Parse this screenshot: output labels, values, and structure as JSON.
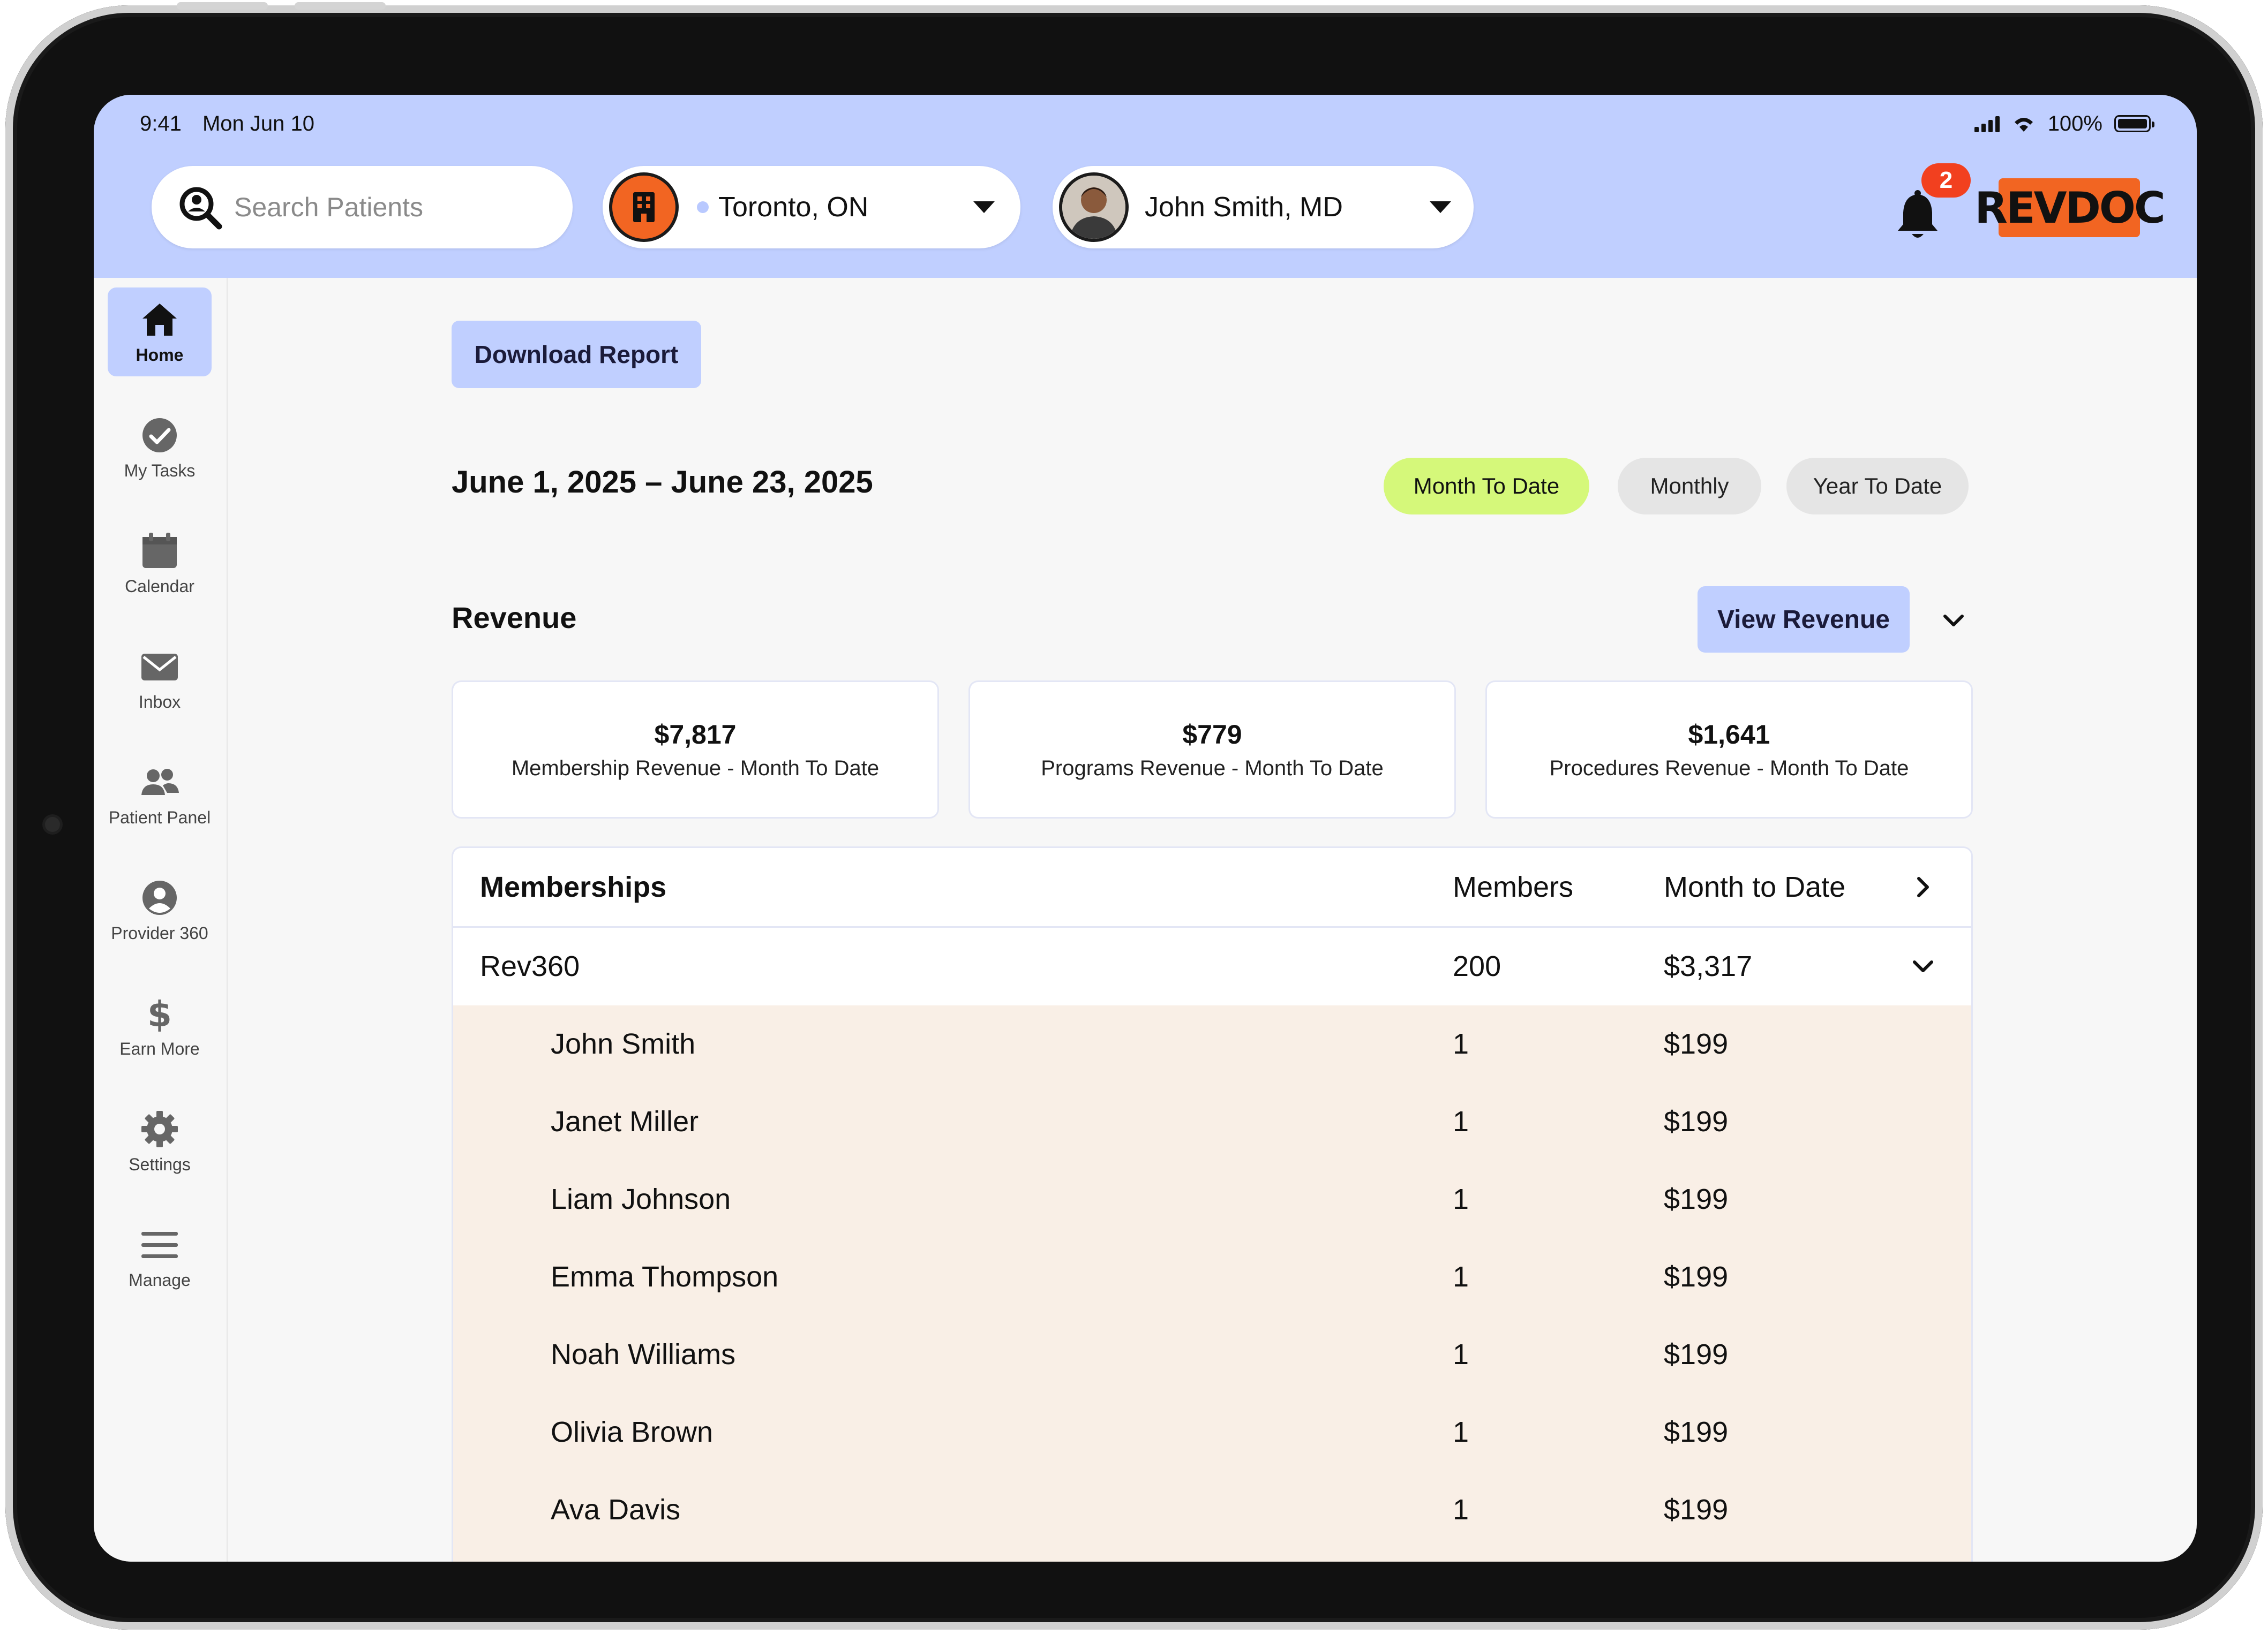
{
  "status_bar": {
    "time": "9:41",
    "date": "Mon Jun 10",
    "battery": "100%"
  },
  "header": {
    "search_placeholder": "Search Patients",
    "location": "Toronto, ON",
    "user_name": "John Smith, MD",
    "notifications_count": "2",
    "logo_text": "REVDOC"
  },
  "sidebar": {
    "items": [
      {
        "label": "Home",
        "icon": "home-icon",
        "active": true
      },
      {
        "label": "My Tasks",
        "icon": "check-circle-icon"
      },
      {
        "label": "Calendar",
        "icon": "calendar-icon"
      },
      {
        "label": "Inbox",
        "icon": "mail-icon"
      },
      {
        "label": "Patient Panel",
        "icon": "users-icon"
      },
      {
        "label": "Provider 360",
        "icon": "user-circle-icon"
      },
      {
        "label": "Earn More",
        "icon": "dollar-icon"
      },
      {
        "label": "Settings",
        "icon": "gear-icon"
      },
      {
        "label": "Manage",
        "icon": "menu-icon"
      }
    ]
  },
  "main": {
    "download_label": "Download Report",
    "date_range": "June 1, 2025 – June 23, 2025",
    "periods": [
      "Month To Date",
      "Monthly",
      "Year To Date"
    ],
    "active_period": "Month To Date",
    "revenue_title": "Revenue",
    "view_revenue_label": "View Revenue",
    "cards": [
      {
        "value": "$7,817",
        "label": "Membership Revenue - Month To Date"
      },
      {
        "value": "$779",
        "label": "Programs Revenue - Month To Date"
      },
      {
        "value": "$1,641",
        "label": "Procedures Revenue - Month To Date"
      }
    ],
    "table": {
      "headers": [
        "Memberships",
        "Members",
        "Month to Date"
      ],
      "group": {
        "name": "Rev360",
        "members": "200",
        "mtd": "$3,317"
      },
      "rows": [
        {
          "name": "John Smith",
          "members": "1",
          "mtd": "$199"
        },
        {
          "name": "Janet Miller",
          "members": "1",
          "mtd": "$199"
        },
        {
          "name": "Liam Johnson",
          "members": "1",
          "mtd": "$199"
        },
        {
          "name": "Emma Thompson",
          "members": "1",
          "mtd": "$199"
        },
        {
          "name": "Noah Williams",
          "members": "1",
          "mtd": "$199"
        },
        {
          "name": "Olivia Brown",
          "members": "1",
          "mtd": "$199"
        },
        {
          "name": "Ava Davis",
          "members": "1",
          "mtd": "$199"
        }
      ]
    }
  },
  "colors": {
    "accent": "#c0cfff",
    "active_period": "#d5f87a",
    "brand": "#f26522",
    "alert": "#f2401f",
    "expanded_rows": "#f9efe6"
  }
}
